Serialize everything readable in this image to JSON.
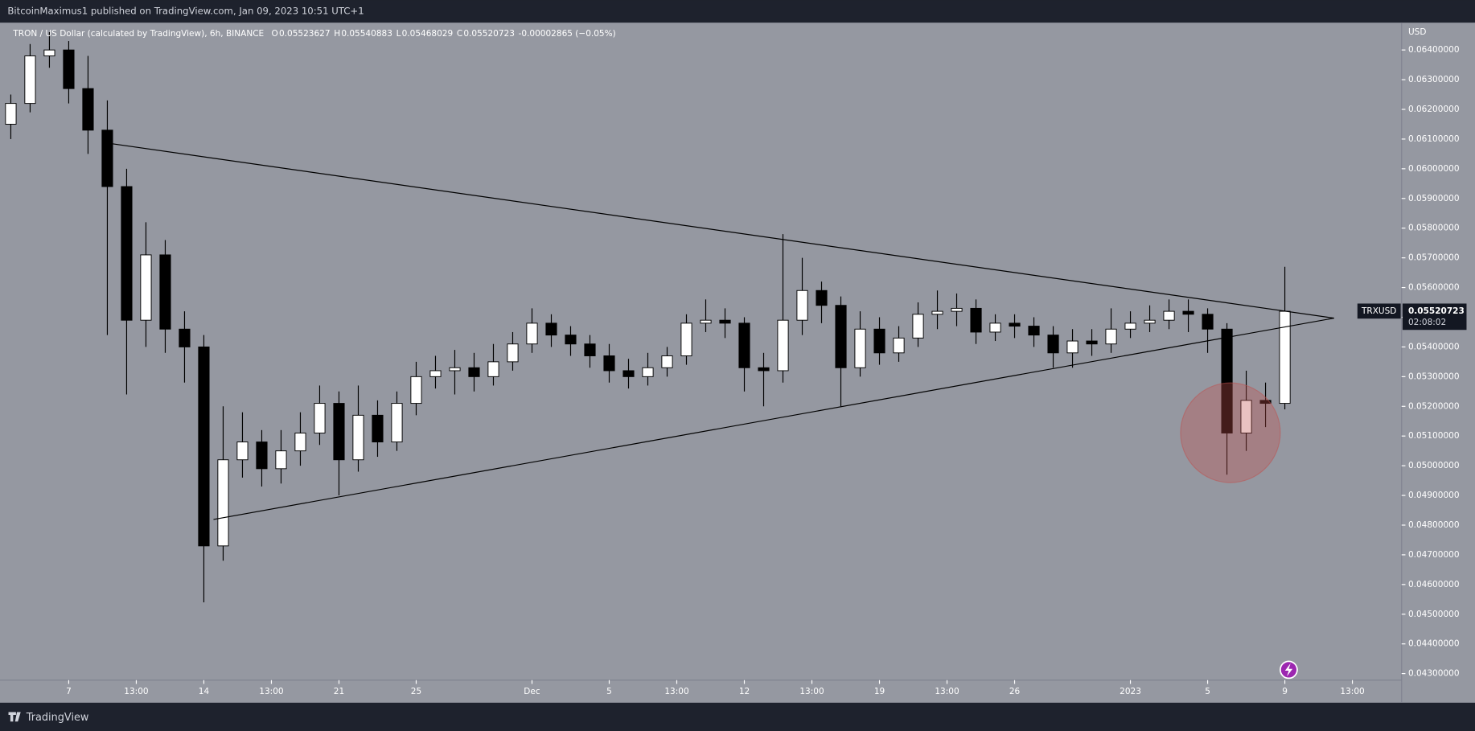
{
  "header": {
    "publisher": "BitcoinMaximus1 published on TradingView.com, Jan 09, 2023 10:51 UTC+1"
  },
  "chart_data": {
    "type": "candlestick",
    "title": "TRON / US Dollar (calculated by TradingView), 6h, BINANCE",
    "ohlc_legend": [
      {
        "label": "O",
        "value": "0.05523627"
      },
      {
        "label": "H",
        "value": "0.05540883"
      },
      {
        "label": "L",
        "value": "0.05468029"
      },
      {
        "label": "C",
        "value": "0.05520723"
      }
    ],
    "change": "-0.00002865 (−0.05%)",
    "y_unit": "USD",
    "symbol": "TRXUSD",
    "last_price": {
      "value": 0.05520723,
      "label": "0.05520723"
    },
    "countdown": "02:08:02",
    "up_color": "#ffffff",
    "down_color": "#000000",
    "x": [
      -3,
      -2,
      -1,
      0,
      1,
      2,
      3,
      4,
      5,
      6,
      7,
      8,
      9,
      10,
      11,
      12,
      13,
      14,
      15,
      16,
      17,
      18,
      19,
      20,
      21,
      22,
      23,
      24,
      25,
      26,
      27,
      28,
      29,
      30,
      31,
      32,
      33,
      34,
      35,
      36,
      37,
      38,
      39,
      40,
      41,
      42,
      43,
      44,
      45,
      46,
      47,
      48,
      49,
      50,
      51,
      52,
      53,
      54,
      55,
      56,
      57,
      58,
      59,
      60,
      61,
      62,
      63
    ],
    "open": [
      0.0615,
      0.0622,
      0.0638,
      0.064,
      0.0627,
      0.0613,
      0.0594,
      0.0549,
      0.0571,
      0.0546,
      0.054,
      0.0473,
      0.0502,
      0.0508,
      0.0499,
      0.0505,
      0.0511,
      0.0521,
      0.0502,
      0.0517,
      0.0508,
      0.0521,
      0.053,
      0.0532,
      0.0533,
      0.053,
      0.0535,
      0.0541,
      0.0548,
      0.0544,
      0.0541,
      0.0537,
      0.0532,
      0.053,
      0.0533,
      0.0537,
      0.0548,
      0.0549,
      0.0548,
      0.0533,
      0.0532,
      0.0549,
      0.0559,
      0.0554,
      0.0533,
      0.0546,
      0.0538,
      0.0543,
      0.0551,
      0.0552,
      0.0553,
      0.0545,
      0.0548,
      0.0547,
      0.0544,
      0.0538,
      0.0542,
      0.0541,
      0.0546,
      0.0548,
      0.0549,
      0.0552,
      0.0551,
      0.0546,
      0.0511,
      0.0522,
      0.0521
    ],
    "high": [
      0.0625,
      0.0642,
      0.0646,
      0.0643,
      0.0638,
      0.0623,
      0.06,
      0.0582,
      0.0576,
      0.0552,
      0.0544,
      0.052,
      0.0518,
      0.0512,
      0.0512,
      0.0518,
      0.0527,
      0.0525,
      0.0527,
      0.0522,
      0.0525,
      0.0535,
      0.0537,
      0.0539,
      0.0538,
      0.0541,
      0.0545,
      0.0553,
      0.0551,
      0.0547,
      0.0544,
      0.0541,
      0.0536,
      0.0538,
      0.054,
      0.0551,
      0.0556,
      0.0553,
      0.055,
      0.0538,
      0.0578,
      0.057,
      0.0562,
      0.0557,
      0.0552,
      0.055,
      0.0547,
      0.0555,
      0.0559,
      0.0558,
      0.0556,
      0.0551,
      0.0551,
      0.055,
      0.0547,
      0.0546,
      0.0546,
      0.0553,
      0.0552,
      0.0554,
      0.0556,
      0.0556,
      0.0553,
      0.0548,
      0.0532,
      0.0528,
      0.0567
    ],
    "low": [
      0.061,
      0.0619,
      0.0634,
      0.0622,
      0.0605,
      0.0544,
      0.0524,
      0.054,
      0.0538,
      0.0528,
      0.0454,
      0.0468,
      0.0496,
      0.0493,
      0.0494,
      0.05,
      0.0507,
      0.049,
      0.0498,
      0.0503,
      0.0505,
      0.0517,
      0.0526,
      0.0524,
      0.0525,
      0.0527,
      0.0532,
      0.0538,
      0.054,
      0.0537,
      0.0533,
      0.0528,
      0.0526,
      0.0527,
      0.053,
      0.0534,
      0.0545,
      0.0543,
      0.0525,
      0.052,
      0.0528,
      0.0544,
      0.0548,
      0.052,
      0.053,
      0.0534,
      0.0535,
      0.054,
      0.0546,
      0.0547,
      0.0541,
      0.0542,
      0.0543,
      0.054,
      0.0533,
      0.0533,
      0.0537,
      0.0538,
      0.0543,
      0.0545,
      0.0546,
      0.0545,
      0.0538,
      0.0497,
      0.0505,
      0.0513,
      0.0519
    ],
    "close": [
      0.0622,
      0.0638,
      0.064,
      0.0627,
      0.0613,
      0.0594,
      0.0549,
      0.0571,
      0.0546,
      0.054,
      0.0473,
      0.0502,
      0.0508,
      0.0499,
      0.0505,
      0.0511,
      0.0521,
      0.0502,
      0.0517,
      0.0508,
      0.0521,
      0.053,
      0.0532,
      0.0533,
      0.053,
      0.0535,
      0.0541,
      0.0548,
      0.0544,
      0.0541,
      0.0537,
      0.0532,
      0.053,
      0.0533,
      0.0537,
      0.0548,
      0.0549,
      0.0548,
      0.0533,
      0.0532,
      0.0549,
      0.0559,
      0.0554,
      0.0533,
      0.0546,
      0.0538,
      0.0543,
      0.0551,
      0.0552,
      0.0553,
      0.0545,
      0.0548,
      0.0547,
      0.0544,
      0.0538,
      0.0542,
      0.0541,
      0.0546,
      0.0548,
      0.0549,
      0.0552,
      0.0551,
      0.0546,
      0.0511,
      0.0522,
      0.0521,
      0.0552
    ],
    "trendlines": [
      {
        "x": [
          2.05,
          65.55
        ],
        "y": [
          0.06086,
          0.05497
        ]
      },
      {
        "x": [
          7.5,
          65.55
        ],
        "y": [
          0.04819,
          0.05497
        ]
      }
    ],
    "xlim": [
      -3.56,
      69.05
    ],
    "ylim": [
      0.04278,
      0.06492
    ],
    "xticks": [
      {
        "value": 0,
        "label": "7"
      },
      {
        "value": 3.5,
        "label": "13:00"
      },
      {
        "value": 7,
        "label": "14"
      },
      {
        "value": 10.5,
        "label": "13:00"
      },
      {
        "value": 14,
        "label": "21"
      },
      {
        "value": 18,
        "label": "25"
      },
      {
        "value": 24,
        "label": "Dec"
      },
      {
        "value": 28,
        "label": "5"
      },
      {
        "value": 31.5,
        "label": "13:00"
      },
      {
        "value": 35,
        "label": "12"
      },
      {
        "value": 38.5,
        "label": "13:00"
      },
      {
        "value": 42,
        "label": "19"
      },
      {
        "value": 45.5,
        "label": "13:00"
      },
      {
        "value": 49,
        "label": "26"
      },
      {
        "value": 55,
        "label": "2023"
      },
      {
        "value": 59,
        "label": "5"
      },
      {
        "value": 63,
        "label": "9"
      },
      {
        "value": 66.5,
        "label": "13:00"
      }
    ],
    "yticks": [
      {
        "value": 0.043,
        "label": "0.04300000"
      },
      {
        "value": 0.044,
        "label": "0.04400000"
      },
      {
        "value": 0.045,
        "label": "0.04500000"
      },
      {
        "value": 0.046,
        "label": "0.04600000"
      },
      {
        "value": 0.047,
        "label": "0.04700000"
      },
      {
        "value": 0.048,
        "label": "0.04800000"
      },
      {
        "value": 0.049,
        "label": "0.04900000"
      },
      {
        "value": 0.05,
        "label": "0.05000000"
      },
      {
        "value": 0.051,
        "label": "0.05100000"
      },
      {
        "value": 0.052,
        "label": "0.05200000"
      },
      {
        "value": 0.053,
        "label": "0.05300000"
      },
      {
        "value": 0.054,
        "label": "0.05400000"
      },
      {
        "value": 0.055,
        "label": "0.05500000"
      },
      {
        "value": 0.056,
        "label": "0.05600000"
      },
      {
        "value": 0.057,
        "label": "0.05700000"
      },
      {
        "value": 0.058,
        "label": "0.05800000"
      },
      {
        "value": 0.059,
        "label": "0.05900000"
      },
      {
        "value": 0.06,
        "label": "0.06000000"
      },
      {
        "value": 0.061,
        "label": "0.06100000"
      },
      {
        "value": 0.062,
        "label": "0.06200000"
      },
      {
        "value": 0.063,
        "label": "0.06300000"
      },
      {
        "value": 0.064,
        "label": "0.06400000"
      }
    ]
  },
  "footer": {
    "brand": "TradingView"
  }
}
